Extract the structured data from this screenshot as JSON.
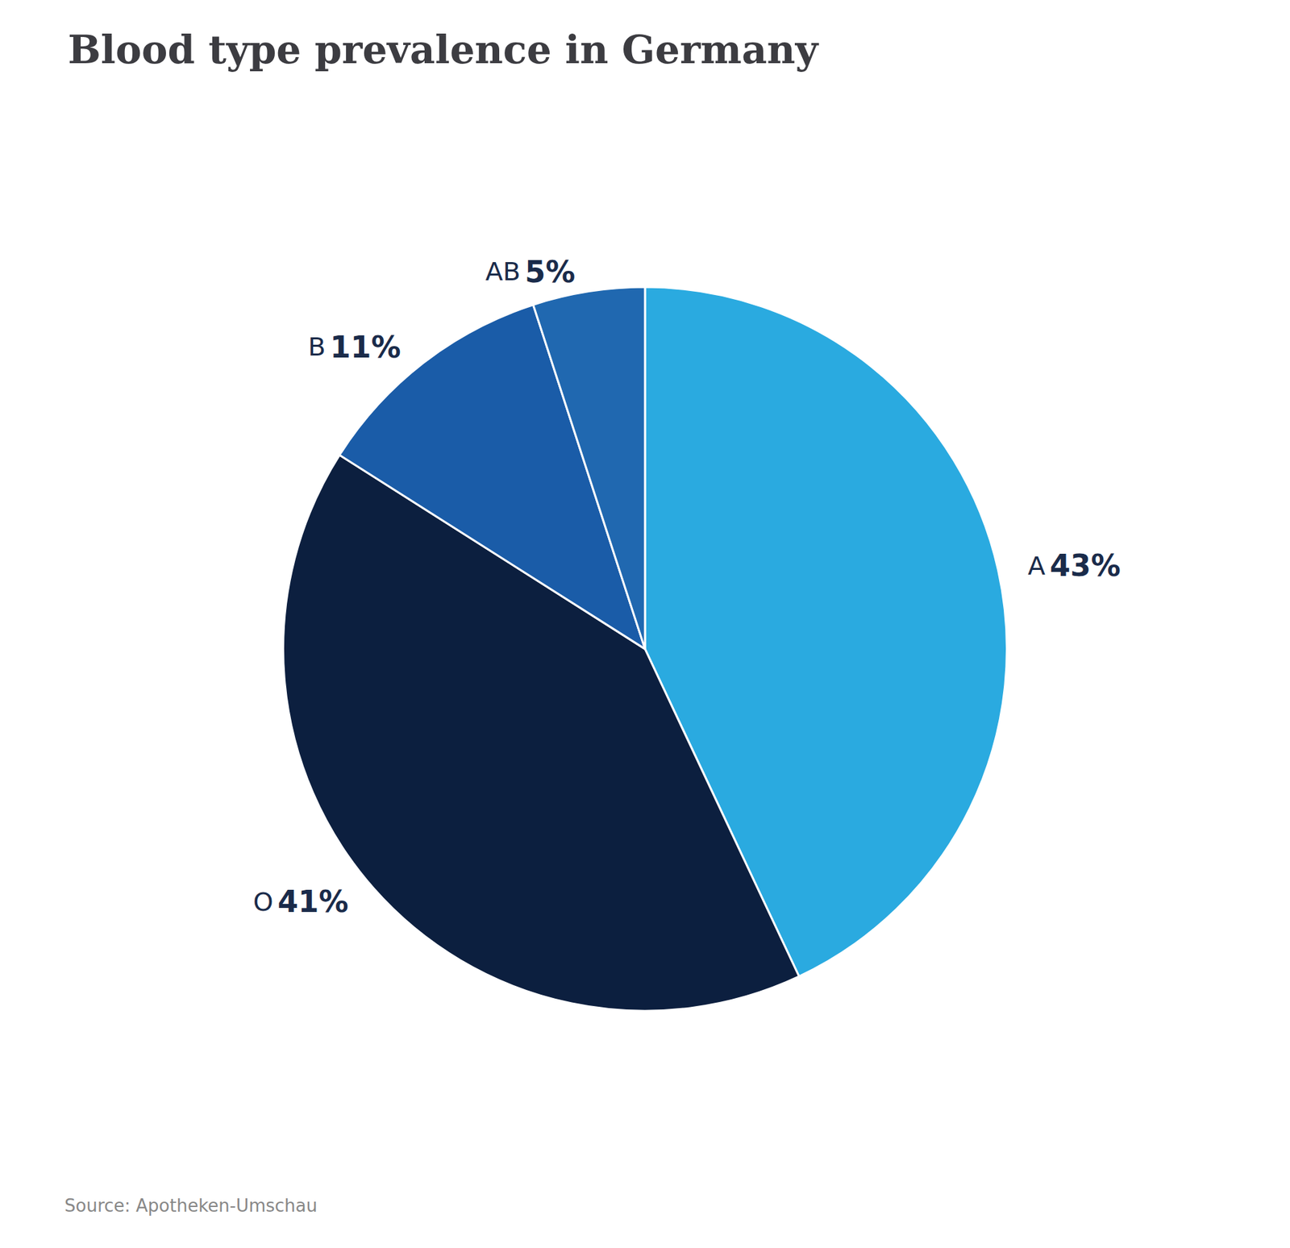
{
  "chart_data": {
    "type": "pie",
    "title": "Blood type prevalence in Germany",
    "categories": [
      "A",
      "O",
      "B",
      "AB"
    ],
    "values": [
      43,
      41,
      11,
      5
    ],
    "value_labels": [
      "43%",
      "41%",
      "11%",
      "5%"
    ],
    "colors": [
      "#2AAAE0",
      "#0C1F3F",
      "#1A5CA8",
      "#2068B0"
    ],
    "data_labels": true,
    "annotations": [
      "Source: Apotheken-Umschau"
    ]
  }
}
